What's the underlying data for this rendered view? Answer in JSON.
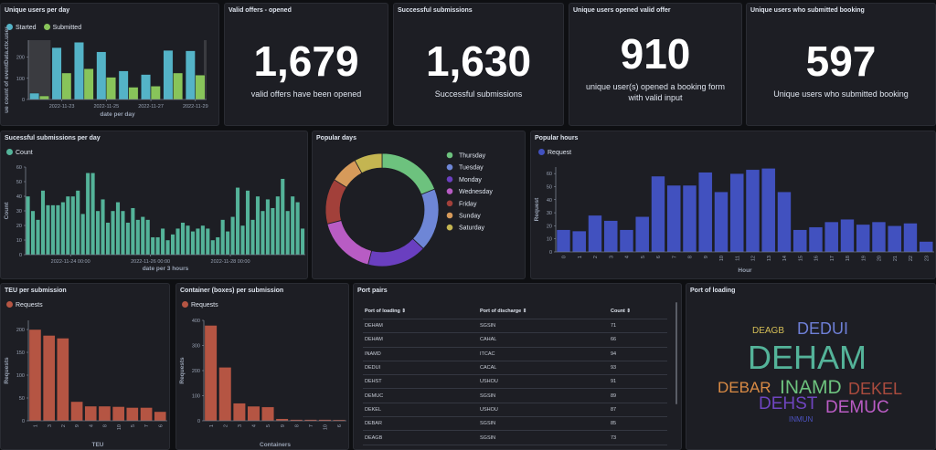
{
  "panels": {
    "unique_users": {
      "title": "Unique users per day"
    },
    "valid_offers": {
      "title": "Valid offers - opened",
      "value": "1,679",
      "label": "valid offers have been opened"
    },
    "successful": {
      "title": "Successful submissions",
      "value": "1,630",
      "label": "Successful submissions"
    },
    "opened_valid": {
      "title": "Unique users opened valid offer",
      "value": "910",
      "label": "unique user(s) opened a booking form with valid input"
    },
    "submitted_booking": {
      "title": "Unique users who submitted booking",
      "value": "597",
      "label": "Unique users who submitted booking"
    },
    "per_day": {
      "title": "Sucessful submissions per day"
    },
    "popular_days": {
      "title": "Popular days"
    },
    "popular_hours": {
      "title": "Popular hours"
    },
    "teu": {
      "title": "TEU per submission"
    },
    "containers": {
      "title": "Container (boxes) per submission"
    },
    "port_pairs": {
      "title": "Port pairs",
      "columns": [
        "Port of loading ⇕",
        "Port of discharge ⇕",
        "Count ⇕"
      ],
      "rows": [
        [
          "DEHAM",
          "SGSIN",
          "71"
        ],
        [
          "DEHAM",
          "CAHAL",
          "66"
        ],
        [
          "INAMD",
          "ITCAC",
          "94"
        ],
        [
          "DEDUI",
          "CACAL",
          "93"
        ],
        [
          "DEHST",
          "USHOU",
          "91"
        ],
        [
          "DEMUC",
          "SGSIN",
          "89"
        ],
        [
          "DEKEL",
          "USHOU",
          "87"
        ],
        [
          "DEBAR",
          "SGSIN",
          "85"
        ],
        [
          "DEAGB",
          "SGSIN",
          "73"
        ]
      ]
    },
    "port_loading": {
      "title": "Port of loading",
      "words": [
        {
          "text": "DEAGB",
          "color": "#d6bf57"
        },
        {
          "text": "DEDUI",
          "color": "#6e7fd6"
        },
        {
          "text": "DEHAM",
          "color": "#54b399"
        },
        {
          "text": "DEBAR",
          "color": "#da8b45"
        },
        {
          "text": "INAMD",
          "color": "#6dc27e"
        },
        {
          "text": "DEKEL",
          "color": "#aa4b3e"
        },
        {
          "text": "DEHST",
          "color": "#6f45c0"
        },
        {
          "text": "DEMUC",
          "color": "#ba5cc4"
        },
        {
          "text": "INMUN",
          "color": "#4d53c2"
        }
      ]
    }
  },
  "chart_data": [
    {
      "type": "bar",
      "id": "unique_users",
      "categories": [
        "2022-11-22",
        "2022-11-23",
        "2022-11-24",
        "2022-11-25",
        "2022-11-26",
        "2022-11-27",
        "2022-11-28",
        "2022-11-29"
      ],
      "tick_labels": [
        "2022-11-23",
        "2022-11-25",
        "2022-11-27",
        "2022-11-29"
      ],
      "series": [
        {
          "name": "Started",
          "color": "#54b3c7",
          "values": [
            30,
            245,
            270,
            225,
            135,
            118,
            232,
            230
          ]
        },
        {
          "name": "Submitted",
          "color": "#88c45a",
          "values": [
            17,
            125,
            145,
            105,
            58,
            63,
            125,
            115
          ]
        }
      ],
      "xlabel": "date per day",
      "ylabel": "ue count of eventData.ctx.user",
      "ylim": [
        0,
        280
      ],
      "yticks": [
        0,
        100,
        200
      ]
    },
    {
      "type": "bar",
      "id": "per_day",
      "xlabel": "date per 3 hours",
      "ylabel": "Count",
      "ylim": [
        0,
        60
      ],
      "yticks": [
        0,
        10,
        20,
        30,
        40,
        50,
        60
      ],
      "tick_labels": [
        "2022-11-24 00:00",
        "2022-11-26 00:00",
        "2022-11-28 00:00"
      ],
      "series": [
        {
          "name": "Count",
          "color": "#54b399",
          "values": [
            40,
            30,
            24,
            44,
            34,
            34,
            34,
            36,
            40,
            40,
            44,
            28,
            56,
            56,
            30,
            38,
            22,
            30,
            36,
            30,
            22,
            32,
            24,
            26,
            24,
            12,
            12,
            18,
            10,
            14,
            18,
            22,
            20,
            16,
            18,
            20,
            18,
            10,
            12,
            24,
            16,
            26,
            46,
            20,
            44,
            24,
            40,
            30,
            38,
            32,
            40,
            52,
            30,
            40,
            36,
            18
          ]
        }
      ]
    },
    {
      "type": "pie",
      "id": "popular_days",
      "donut": true,
      "categories": [
        "Thursday",
        "Tuesday",
        "Monday",
        "Wednesday",
        "Friday",
        "Sunday",
        "Saturday"
      ],
      "values": [
        19,
        18,
        17,
        17,
        13,
        8,
        8
      ],
      "colors": [
        "#6dc27e",
        "#6e86d6",
        "#6a3fc0",
        "#b85cc4",
        "#a2403a",
        "#d69a5a",
        "#c4b551"
      ]
    },
    {
      "type": "bar",
      "id": "popular_hours",
      "xlabel": "Hour",
      "ylabel": "Request",
      "ylim": [
        0,
        65
      ],
      "yticks": [
        0,
        10,
        20,
        30,
        40,
        50,
        60
      ],
      "categories": [
        "0",
        "1",
        "2",
        "3",
        "4",
        "5",
        "6",
        "7",
        "8",
        "9",
        "10",
        "11",
        "12",
        "13",
        "14",
        "15",
        "16",
        "17",
        "18",
        "19",
        "20",
        "21",
        "22",
        "23"
      ],
      "series": [
        {
          "name": "Request",
          "color": "#4151bf",
          "values": [
            17,
            16,
            28,
            24,
            17,
            27,
            58,
            51,
            51,
            61,
            46,
            60,
            63,
            64,
            46,
            17,
            19,
            23,
            25,
            21,
            23,
            20,
            22,
            8
          ]
        }
      ]
    },
    {
      "type": "bar",
      "id": "teu",
      "xlabel": "TEU",
      "ylabel": "Requests",
      "ylim": [
        0,
        220
      ],
      "yticks": [
        0,
        50,
        100,
        150,
        200
      ],
      "categories": [
        "1",
        "3",
        "2",
        "9",
        "4",
        "8",
        "10",
        "5",
        "7",
        "6"
      ],
      "series": [
        {
          "name": "Requests",
          "color": "#b55543",
          "values": [
            200,
            187,
            181,
            42,
            32,
            32,
            31,
            29,
            29,
            20
          ]
        }
      ]
    },
    {
      "type": "bar",
      "id": "containers",
      "xlabel": "Containers",
      "ylabel": "Requests",
      "ylim": [
        0,
        400
      ],
      "yticks": [
        0,
        100,
        200,
        300,
        400
      ],
      "categories": [
        "1",
        "2",
        "3",
        "4",
        "5",
        "9",
        "8",
        "7",
        "10",
        "6"
      ],
      "series": [
        {
          "name": "Requests",
          "color": "#b55543",
          "values": [
            380,
            213,
            70,
            58,
            55,
            8,
            5,
            5,
            5,
            4
          ]
        }
      ]
    }
  ]
}
